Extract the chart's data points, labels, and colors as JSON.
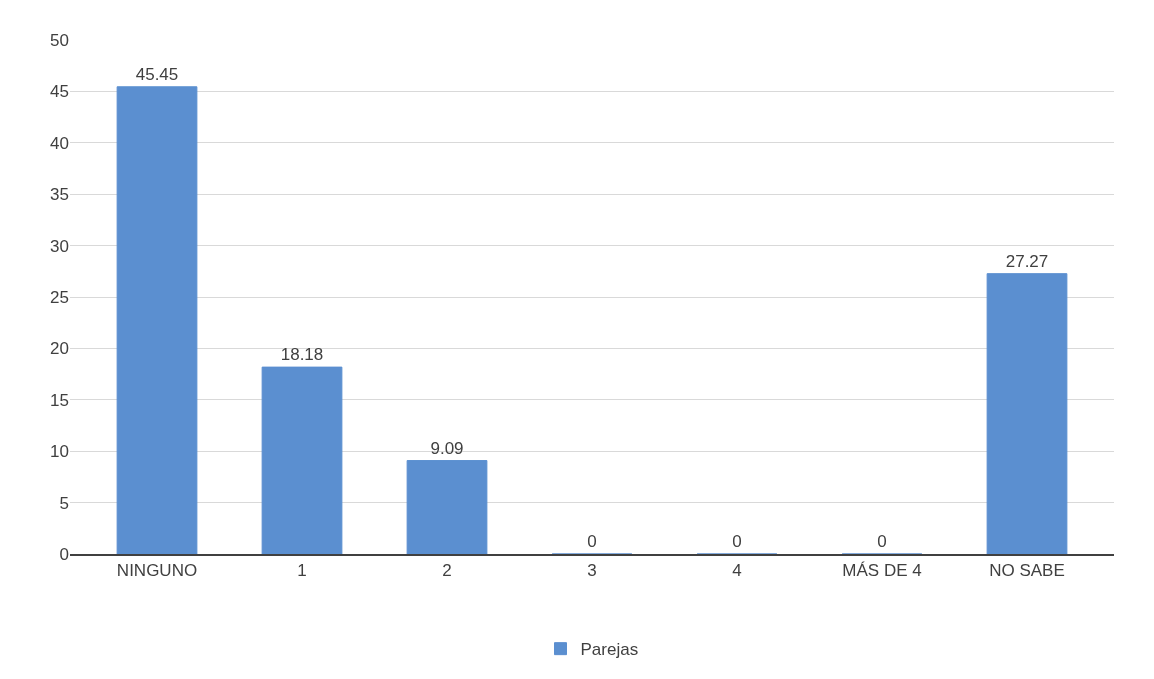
{
  "chart_data": {
    "type": "bar",
    "categories": [
      "NINGUNO",
      "1",
      "2",
      "3",
      "4",
      "MÁS DE 4",
      "NO SABE"
    ],
    "series": [
      {
        "name": "Parejas",
        "color": "#5b8fd0",
        "values": [
          45.45,
          18.18,
          9.09,
          0,
          0,
          0,
          27.27
        ]
      }
    ],
    "data_labels": true,
    "ylim": [
      0,
      50
    ],
    "yticks": [
      0,
      5,
      10,
      15,
      20,
      25,
      30,
      35,
      40,
      45,
      50
    ],
    "grid": "y",
    "legend": "bottom"
  }
}
